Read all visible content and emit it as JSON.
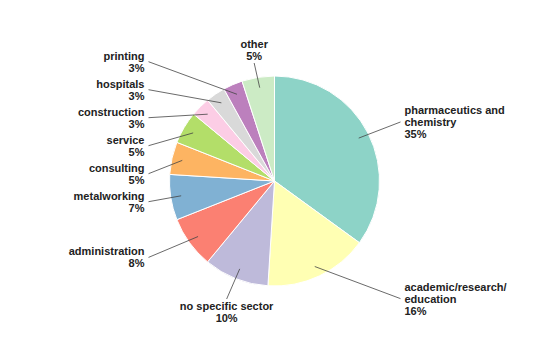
{
  "chart_data": {
    "type": "pie",
    "categories": [
      "pharmaceutics and\nchemistry",
      "academic/research/\neducation",
      "no specific sector",
      "administration",
      "metalworking",
      "consulting",
      "service",
      "construction",
      "hospitals",
      "printing",
      "other"
    ],
    "values": [
      35,
      16,
      10,
      8,
      7,
      5,
      5,
      3,
      3,
      3,
      5
    ],
    "value_labels": [
      "35%",
      "16%",
      "10%",
      "8%",
      "7%",
      "5%",
      "5%",
      "3%",
      "3%",
      "3%",
      "5%"
    ],
    "data_labels": true
  }
}
